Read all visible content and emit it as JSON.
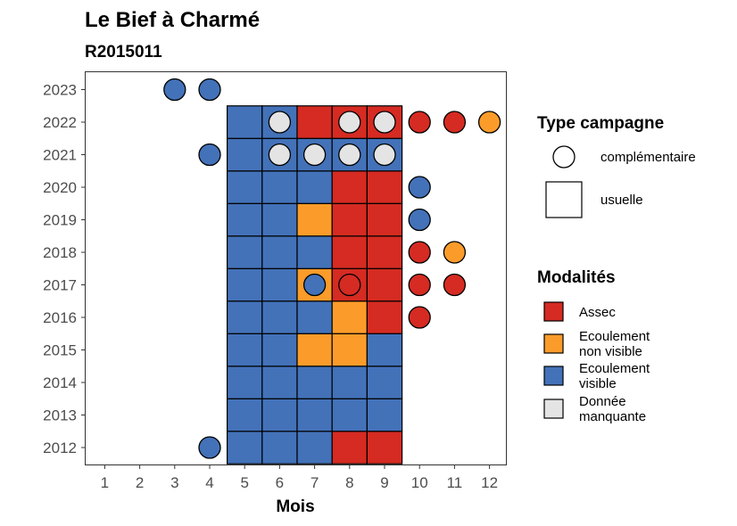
{
  "chart_data": {
    "type": "heatmap",
    "title": "Le Bief à Charmé",
    "subtitle": "R2015011",
    "xlabel": "Mois",
    "ylabel": "",
    "x_ticks": [
      1,
      2,
      3,
      4,
      5,
      6,
      7,
      8,
      9,
      10,
      11,
      12
    ],
    "y_ticks": [
      2012,
      2013,
      2014,
      2015,
      2016,
      2017,
      2018,
      2019,
      2020,
      2021,
      2022,
      2023
    ],
    "grid": false,
    "legend_position": "right",
    "colors": {
      "Assec": "#d52b22",
      "Ecoulement non visible": "#fb9c2a",
      "Ecoulement visible": "#4372b9",
      "Donnée manquante": "#e4e4e4"
    },
    "legend_type": {
      "title": "Type campagne",
      "items": [
        {
          "key": "complementaire",
          "label": "complémentaire",
          "shape": "circle"
        },
        {
          "key": "usuelle",
          "label": "usuelle",
          "shape": "square"
        }
      ]
    },
    "legend_modalites": {
      "title": "Modalités",
      "items": [
        {
          "key": "Assec",
          "lines": [
            "Assec"
          ]
        },
        {
          "key": "Ecoulement non visible",
          "lines": [
            "Ecoulement",
            "non visible"
          ]
        },
        {
          "key": "Ecoulement visible",
          "lines": [
            "Ecoulement",
            "visible"
          ]
        },
        {
          "key": "Donnée manquante",
          "lines": [
            "Donnée",
            "manquante"
          ]
        }
      ]
    },
    "usuelle": [
      {
        "year": 2012,
        "month": 5,
        "value": "Ecoulement visible"
      },
      {
        "year": 2012,
        "month": 6,
        "value": "Ecoulement visible"
      },
      {
        "year": 2012,
        "month": 7,
        "value": "Ecoulement visible"
      },
      {
        "year": 2012,
        "month": 8,
        "value": "Assec"
      },
      {
        "year": 2012,
        "month": 9,
        "value": "Assec"
      },
      {
        "year": 2013,
        "month": 5,
        "value": "Ecoulement visible"
      },
      {
        "year": 2013,
        "month": 6,
        "value": "Ecoulement visible"
      },
      {
        "year": 2013,
        "month": 7,
        "value": "Ecoulement visible"
      },
      {
        "year": 2013,
        "month": 8,
        "value": "Ecoulement visible"
      },
      {
        "year": 2013,
        "month": 9,
        "value": "Ecoulement visible"
      },
      {
        "year": 2014,
        "month": 5,
        "value": "Ecoulement visible"
      },
      {
        "year": 2014,
        "month": 6,
        "value": "Ecoulement visible"
      },
      {
        "year": 2014,
        "month": 7,
        "value": "Ecoulement visible"
      },
      {
        "year": 2014,
        "month": 8,
        "value": "Ecoulement visible"
      },
      {
        "year": 2014,
        "month": 9,
        "value": "Ecoulement visible"
      },
      {
        "year": 2015,
        "month": 5,
        "value": "Ecoulement visible"
      },
      {
        "year": 2015,
        "month": 6,
        "value": "Ecoulement visible"
      },
      {
        "year": 2015,
        "month": 7,
        "value": "Ecoulement non visible"
      },
      {
        "year": 2015,
        "month": 8,
        "value": "Ecoulement non visible"
      },
      {
        "year": 2015,
        "month": 9,
        "value": "Ecoulement visible"
      },
      {
        "year": 2016,
        "month": 5,
        "value": "Ecoulement visible"
      },
      {
        "year": 2016,
        "month": 6,
        "value": "Ecoulement visible"
      },
      {
        "year": 2016,
        "month": 7,
        "value": "Ecoulement visible"
      },
      {
        "year": 2016,
        "month": 8,
        "value": "Ecoulement non visible"
      },
      {
        "year": 2016,
        "month": 9,
        "value": "Assec"
      },
      {
        "year": 2017,
        "month": 5,
        "value": "Ecoulement visible"
      },
      {
        "year": 2017,
        "month": 6,
        "value": "Ecoulement visible"
      },
      {
        "year": 2017,
        "month": 7,
        "value": "Ecoulement non visible"
      },
      {
        "year": 2017,
        "month": 8,
        "value": "Assec"
      },
      {
        "year": 2017,
        "month": 9,
        "value": "Assec"
      },
      {
        "year": 2018,
        "month": 5,
        "value": "Ecoulement visible"
      },
      {
        "year": 2018,
        "month": 6,
        "value": "Ecoulement visible"
      },
      {
        "year": 2018,
        "month": 7,
        "value": "Ecoulement visible"
      },
      {
        "year": 2018,
        "month": 8,
        "value": "Assec"
      },
      {
        "year": 2018,
        "month": 9,
        "value": "Assec"
      },
      {
        "year": 2019,
        "month": 5,
        "value": "Ecoulement visible"
      },
      {
        "year": 2019,
        "month": 6,
        "value": "Ecoulement visible"
      },
      {
        "year": 2019,
        "month": 7,
        "value": "Ecoulement non visible"
      },
      {
        "year": 2019,
        "month": 8,
        "value": "Assec"
      },
      {
        "year": 2019,
        "month": 9,
        "value": "Assec"
      },
      {
        "year": 2020,
        "month": 5,
        "value": "Ecoulement visible"
      },
      {
        "year": 2020,
        "month": 6,
        "value": "Ecoulement visible"
      },
      {
        "year": 2020,
        "month": 7,
        "value": "Ecoulement visible"
      },
      {
        "year": 2020,
        "month": 8,
        "value": "Assec"
      },
      {
        "year": 2020,
        "month": 9,
        "value": "Assec"
      },
      {
        "year": 2021,
        "month": 5,
        "value": "Ecoulement visible"
      },
      {
        "year": 2021,
        "month": 6,
        "value": "Ecoulement visible"
      },
      {
        "year": 2021,
        "month": 7,
        "value": "Ecoulement visible"
      },
      {
        "year": 2021,
        "month": 8,
        "value": "Ecoulement visible"
      },
      {
        "year": 2021,
        "month": 9,
        "value": "Ecoulement visible"
      },
      {
        "year": 2022,
        "month": 5,
        "value": "Ecoulement visible"
      },
      {
        "year": 2022,
        "month": 6,
        "value": "Ecoulement visible"
      },
      {
        "year": 2022,
        "month": 7,
        "value": "Assec"
      },
      {
        "year": 2022,
        "month": 8,
        "value": "Assec"
      },
      {
        "year": 2022,
        "month": 9,
        "value": "Assec"
      }
    ],
    "complementaire": [
      {
        "year": 2023,
        "month": 3,
        "value": "Ecoulement visible"
      },
      {
        "year": 2023,
        "month": 4,
        "value": "Ecoulement visible"
      },
      {
        "year": 2022,
        "month": 6,
        "value": "Donnée manquante"
      },
      {
        "year": 2022,
        "month": 8,
        "value": "Donnée manquante"
      },
      {
        "year": 2022,
        "month": 9,
        "value": "Donnée manquante"
      },
      {
        "year": 2022,
        "month": 10,
        "value": "Assec"
      },
      {
        "year": 2022,
        "month": 11,
        "value": "Assec"
      },
      {
        "year": 2022,
        "month": 12,
        "value": "Ecoulement non visible"
      },
      {
        "year": 2021,
        "month": 4,
        "value": "Ecoulement visible"
      },
      {
        "year": 2021,
        "month": 6,
        "value": "Donnée manquante"
      },
      {
        "year": 2021,
        "month": 7,
        "value": "Donnée manquante"
      },
      {
        "year": 2021,
        "month": 8,
        "value": "Donnée manquante"
      },
      {
        "year": 2021,
        "month": 9,
        "value": "Donnée manquante"
      },
      {
        "year": 2020,
        "month": 10,
        "value": "Ecoulement visible"
      },
      {
        "year": 2019,
        "month": 10,
        "value": "Ecoulement visible"
      },
      {
        "year": 2018,
        "month": 10,
        "value": "Assec"
      },
      {
        "year": 2018,
        "month": 11,
        "value": "Ecoulement non visible"
      },
      {
        "year": 2017,
        "month": 7,
        "value": "Ecoulement visible"
      },
      {
        "year": 2017,
        "month": 8,
        "value": "Assec"
      },
      {
        "year": 2017,
        "month": 10,
        "value": "Assec"
      },
      {
        "year": 2017,
        "month": 11,
        "value": "Assec"
      },
      {
        "year": 2016,
        "month": 10,
        "value": "Assec"
      },
      {
        "year": 2012,
        "month": 4,
        "value": "Ecoulement visible"
      }
    ]
  }
}
